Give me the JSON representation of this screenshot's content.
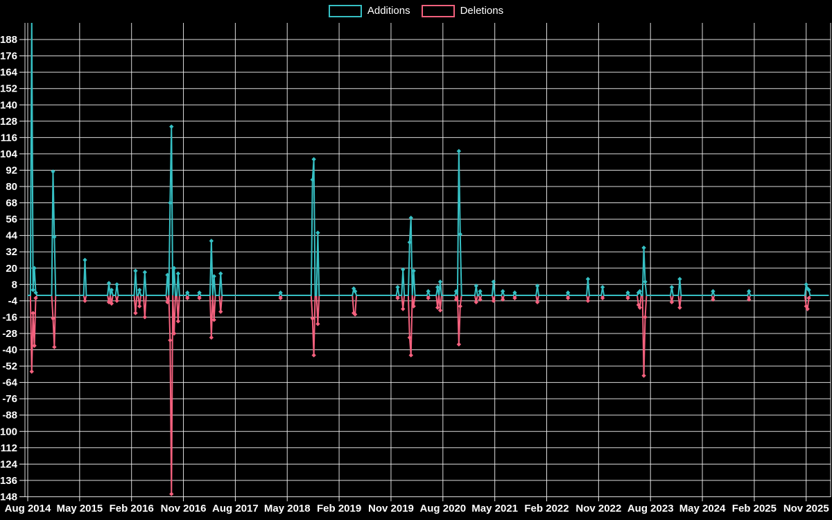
{
  "legend": {
    "additions_label": "Additions",
    "deletions_label": "Deletions"
  },
  "colors": {
    "additions": "#36c0c4",
    "deletions": "#f4617e",
    "background": "#000000",
    "grid": "#f0f0f0",
    "text": "#ffffff"
  },
  "chart_data": {
    "type": "line",
    "title": "",
    "legend_position": "top-center",
    "grid": true,
    "marker": "diamond",
    "x_axis": {
      "tick_labels": [
        "Aug 2014",
        "May 2015",
        "Feb 2016",
        "Nov 2016",
        "Aug 2017",
        "May 2018",
        "Feb 2019",
        "Nov 2019",
        "Aug 2020",
        "May 2021",
        "Feb 2022",
        "Nov 2022",
        "Aug 2023",
        "May 2024",
        "Feb 2025",
        "Nov 2025"
      ],
      "interval_between_ticks": "9 months (39 weeks)"
    },
    "y_axis": {
      "ticks": [
        188,
        176,
        164,
        152,
        140,
        128,
        116,
        104,
        92,
        80,
        68,
        56,
        44,
        32,
        20,
        8,
        -4,
        -16,
        -28,
        -40,
        -52,
        -64,
        -76,
        -88,
        -100,
        -112,
        -124,
        -136,
        -148
      ],
      "visible_range": [
        -151,
        200
      ]
    },
    "series": [
      {
        "name": "Additions",
        "color": "#36c0c4"
      },
      {
        "name": "Deletions",
        "color": "#f4617e"
      }
    ],
    "week0_label": "Aug 2014",
    "weeks_per_tick": 39,
    "weeks_total": 602,
    "baseline": 0,
    "points_nonzero": [
      [
        3,
        205,
        -56
      ],
      [
        4,
        4,
        -13
      ],
      [
        5,
        20,
        -37
      ],
      [
        6,
        2,
        -2
      ],
      [
        19,
        91,
        -17
      ],
      [
        20,
        43,
        -38
      ],
      [
        43,
        26,
        -4
      ],
      [
        61,
        9,
        -5
      ],
      [
        63,
        4,
        -6
      ],
      [
        67,
        8,
        -4
      ],
      [
        81,
        18,
        -13
      ],
      [
        84,
        4,
        -8
      ],
      [
        88,
        17,
        -16
      ],
      [
        105,
        15,
        -5
      ],
      [
        107,
        68,
        -33
      ],
      [
        108,
        124,
        -146
      ],
      [
        110,
        20,
        -28
      ],
      [
        113,
        16,
        -19
      ],
      [
        120,
        2,
        -2
      ],
      [
        129,
        2,
        -2
      ],
      [
        138,
        40,
        -31
      ],
      [
        140,
        14,
        -18
      ],
      [
        145,
        16,
        -12
      ],
      [
        190,
        2,
        -2
      ],
      [
        214,
        85,
        -17
      ],
      [
        215,
        100,
        -44
      ],
      [
        218,
        46,
        -21
      ],
      [
        245,
        5,
        -13
      ],
      [
        246,
        3,
        -14
      ],
      [
        278,
        6,
        -2
      ],
      [
        282,
        19,
        -10
      ],
      [
        287,
        39,
        -31
      ],
      [
        288,
        57,
        -44
      ],
      [
        290,
        18,
        -8
      ],
      [
        301,
        3,
        -2
      ],
      [
        308,
        6,
        -9
      ],
      [
        310,
        10,
        -11
      ],
      [
        322,
        3,
        -3
      ],
      [
        324,
        106,
        -36
      ],
      [
        325,
        45,
        -8
      ],
      [
        337,
        7,
        -5
      ],
      [
        340,
        3,
        -3
      ],
      [
        350,
        10,
        -4
      ],
      [
        357,
        3,
        -3
      ],
      [
        366,
        2,
        -2
      ],
      [
        383,
        7,
        -5
      ],
      [
        406,
        2,
        -2
      ],
      [
        421,
        12,
        -4
      ],
      [
        432,
        6,
        -2
      ],
      [
        451,
        2,
        -2
      ],
      [
        459,
        2,
        -7
      ],
      [
        460,
        3,
        -9
      ],
      [
        463,
        35,
        -59
      ],
      [
        464,
        10,
        -16
      ],
      [
        484,
        6,
        -5
      ],
      [
        490,
        12,
        -9
      ],
      [
        515,
        3,
        -3
      ],
      [
        542,
        3,
        -3
      ],
      [
        585,
        8,
        -8
      ],
      [
        586,
        5,
        -10
      ],
      [
        587,
        4,
        -2
      ]
    ],
    "notes": "Weekly additions/deletions series; all unlisted weeks are 0/0. The first additions spike (Aug 2014) exceeds the visible axis range (>200) and is clipped at the top of the plot. Deepest deletions spike (Nov 2016) reaches about -146."
  }
}
